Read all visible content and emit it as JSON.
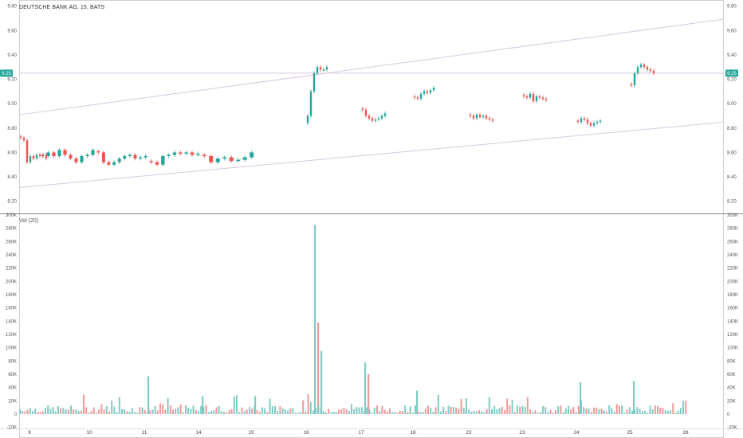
{
  "header": {
    "symbol_title": "DEUTSCHE BANK AG, 15, BATS",
    "volume_title": "Vol (20)"
  },
  "colors": {
    "up": "#26a69a",
    "down": "#ef5350",
    "up_volume": "#80cbc4",
    "down_volume": "#ef9a9a",
    "last_price_badge": "#26a69a",
    "trendline": "#d7c8de",
    "price_line": "#d7c8de"
  },
  "chart_data": [
    {
      "type": "candlestick",
      "title": "DEUTSCHE BANK AG, 15, BATS",
      "symbol": "DEUTSCHE BANK AG",
      "interval": "15",
      "exchange": "BATS",
      "y_ticks": [
        "9.80",
        "9.60",
        "9.40",
        "9.20",
        "9.00",
        "8.80",
        "8.60",
        "8.40",
        "8.20"
      ],
      "y_axis_position": "both",
      "ylim": [
        8.1,
        9.85
      ],
      "last_price_label": "9.25",
      "last_price": 9.25,
      "grid": false,
      "sessions": [
        {
          "date": "9",
          "values": [
            8.72,
            8.7,
            8.52,
            8.57,
            8.55,
            8.58,
            8.57,
            8.58,
            8.55
          ]
        },
        {
          "date": "10",
          "values": [
            8.57,
            8.6,
            8.57,
            8.62,
            8.58,
            8.55,
            8.52,
            8.57,
            8.58,
            8.62
          ]
        },
        {
          "date": "11",
          "values": [
            8.6,
            8.52,
            8.5,
            8.52,
            8.55,
            8.57,
            8.58,
            8.55,
            8.56,
            8.57
          ]
        },
        {
          "date": "14",
          "values": [
            8.52,
            8.5,
            8.57,
            8.58,
            8.6,
            8.59,
            8.6,
            8.58,
            8.59
          ]
        },
        {
          "date": "15",
          "values": [
            8.57,
            8.52,
            8.55,
            8.56,
            8.53,
            8.54,
            8.56,
            8.6
          ]
        },
        {
          "date": "16",
          "values": [
            8.9,
            9.1,
            9.25,
            9.3,
            9.28,
            9.28,
            9.3
          ]
        },
        {
          "date": "17",
          "values": [
            8.95,
            8.9,
            8.88,
            8.86,
            8.87,
            8.88,
            8.9,
            8.92
          ]
        },
        {
          "date": "18",
          "values": [
            9.05,
            9.04,
            9.08,
            9.1,
            9.09,
            9.11,
            9.13
          ]
        },
        {
          "date": "22",
          "values": [
            8.9,
            8.88,
            8.91,
            8.89,
            8.9,
            8.88,
            8.87,
            8.86
          ]
        },
        {
          "date": "23",
          "values": [
            9.06,
            9.05,
            9.08,
            9.02,
            9.06,
            9.05,
            9.04,
            9.03
          ]
        },
        {
          "date": "24",
          "values": [
            8.85,
            8.88,
            8.87,
            8.84,
            8.82,
            8.84,
            8.85,
            8.86
          ]
        },
        {
          "date": "25",
          "values": [
            9.15,
            9.25,
            9.3,
            9.32,
            9.3,
            9.28,
            9.27,
            9.25
          ]
        }
      ],
      "trendlines": [
        {
          "from": [
            "9",
            8.92
          ],
          "to": [
            "28",
            9.65
          ]
        },
        {
          "from": [
            "9",
            8.32
          ],
          "to": [
            "28",
            8.82
          ]
        }
      ]
    },
    {
      "type": "bar",
      "title": "Vol (20)",
      "x_ticks": [
        "9",
        "10",
        "11",
        "14",
        "15",
        "16",
        "17",
        "18",
        "22",
        "23",
        "24",
        "25",
        "28"
      ],
      "y_ticks": [
        "300K",
        "280K",
        "260K",
        "240K",
        "220K",
        "200K",
        "180K",
        "160K",
        "140K",
        "120K",
        "100K",
        "80K",
        "60K",
        "40K",
        "20K",
        "0",
        "-20K"
      ],
      "ylim": [
        -20000,
        300000
      ],
      "y_axis_position": "both",
      "grid": false,
      "notable_values": [
        {
          "date": "11",
          "value": 57000
        },
        {
          "date": "14",
          "value": 27000
        },
        {
          "date": "15",
          "value": 27000
        },
        {
          "date": "16",
          "value": 285000
        },
        {
          "date": "16",
          "value": 138000
        },
        {
          "date": "16",
          "value": 95000
        },
        {
          "date": "17",
          "value": 78000
        },
        {
          "date": "17",
          "value": 60000
        },
        {
          "date": "18",
          "value": 35000
        },
        {
          "date": "24",
          "value": 48000
        },
        {
          "date": "25",
          "value": 50000
        }
      ],
      "typical_range": [
        2000,
        30000
      ]
    }
  ]
}
